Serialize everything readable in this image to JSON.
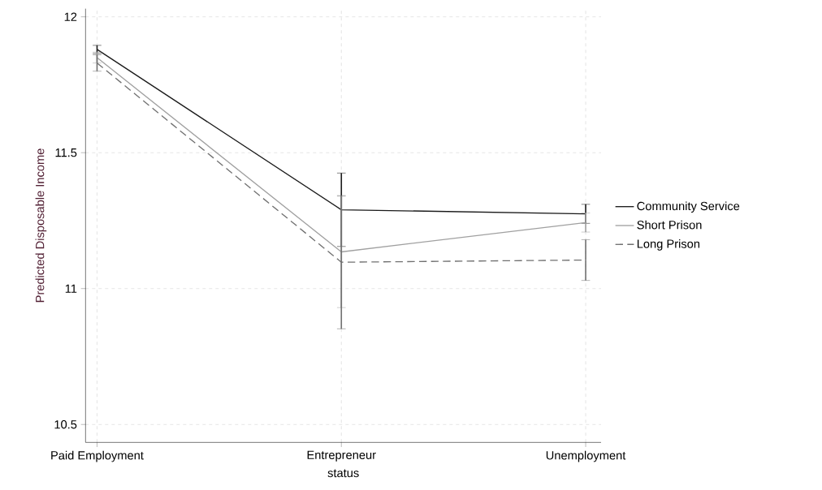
{
  "chart_data": {
    "type": "line",
    "ylabel": "Predicted Disposable Income",
    "xlabel": "status",
    "categories": [
      "Paid Employment",
      "Entrepreneur",
      "Unemployment"
    ],
    "series": [
      {
        "name": "Community Service",
        "color": "#1a1a1a",
        "line_style": "solid",
        "values": [
          11.88,
          11.29,
          11.275
        ],
        "errors": [
          0.015,
          0.135,
          0.035
        ]
      },
      {
        "name": "Short Prison",
        "color": "#a0a0a0",
        "line_style": "solid",
        "values": [
          11.85,
          11.135,
          11.243
        ],
        "errors": [
          0.02,
          0.205,
          0.035
        ]
      },
      {
        "name": "Long Prison",
        "color": "#707070",
        "line_style": "dashed",
        "values": [
          11.83,
          11.097,
          11.105
        ],
        "errors": [
          0.03,
          0.245,
          0.075
        ]
      }
    ],
    "ylim": [
      10.434,
      12.03
    ],
    "yticks": [
      10.5,
      11,
      11.5,
      12
    ],
    "grid": true,
    "legend": "right",
    "marker": "none"
  }
}
